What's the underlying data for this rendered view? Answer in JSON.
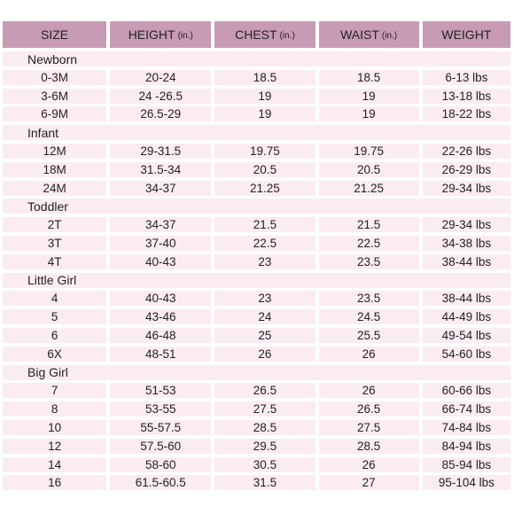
{
  "columns": [
    {
      "label": "SIZE",
      "unit": ""
    },
    {
      "label": "HEIGHT",
      "unit": "(in.)"
    },
    {
      "label": "CHEST",
      "unit": "(in.)"
    },
    {
      "label": "WAIST",
      "unit": "(in.)"
    },
    {
      "label": "WEIGHT",
      "unit": ""
    }
  ],
  "groups": [
    {
      "name": "Newborn",
      "rows": [
        [
          "0-3M",
          "20-24",
          "18.5",
          "18.5",
          "6-13 lbs"
        ],
        [
          "3-6M",
          "24 -26.5",
          "19",
          "19",
          "13-18 lbs"
        ],
        [
          "6-9M",
          "26.5-29",
          "19",
          "19",
          "18-22 lbs"
        ]
      ]
    },
    {
      "name": "Infant",
      "rows": [
        [
          "12M",
          "29-31.5",
          "19.75",
          "19.75",
          "22-26 lbs"
        ],
        [
          "18M",
          "31.5-34",
          "20.5",
          "20.5",
          "26-29 lbs"
        ],
        [
          "24M",
          "34-37",
          "21.25",
          "21.25",
          "29-34 lbs"
        ]
      ]
    },
    {
      "name": "Toddler",
      "rows": [
        [
          "2T",
          "34-37",
          "21.5",
          "21.5",
          "29-34 lbs"
        ],
        [
          "3T",
          "37-40",
          "22.5",
          "22.5",
          "34-38 lbs"
        ],
        [
          "4T",
          "40-43",
          "23",
          "23.5",
          "38-44 lbs"
        ]
      ]
    },
    {
      "name": "Little Girl",
      "rows": [
        [
          "4",
          "40-43",
          "23",
          "23.5",
          "38-44 lbs"
        ],
        [
          "5",
          "43-46",
          "24",
          "24.5",
          "44-49 lbs"
        ],
        [
          "6",
          "46-48",
          "25",
          "25.5",
          "49-54 lbs"
        ],
        [
          "6X",
          "48-51",
          "26",
          "26",
          "54-60 lbs"
        ]
      ]
    },
    {
      "name": "Big Girl",
      "rows": [
        [
          "7",
          "51-53",
          "26.5",
          "26",
          "60-66 lbs"
        ],
        [
          "8",
          "53-55",
          "27.5",
          "26.5",
          "66-74 lbs"
        ],
        [
          "10",
          "55-57.5",
          "28.5",
          "27.5",
          "74-84 lbs"
        ],
        [
          "12",
          "57.5-60",
          "29.5",
          "28.5",
          "84-94 lbs"
        ],
        [
          "14",
          "58-60",
          "30.5",
          "26",
          "85-94 lbs"
        ],
        [
          "16",
          "61.5-60.5",
          "31.5",
          "27",
          "95-104 lbs"
        ]
      ]
    }
  ],
  "colors": {
    "header_bg": "#c89bb4",
    "row_bg": "#fbecf2"
  }
}
